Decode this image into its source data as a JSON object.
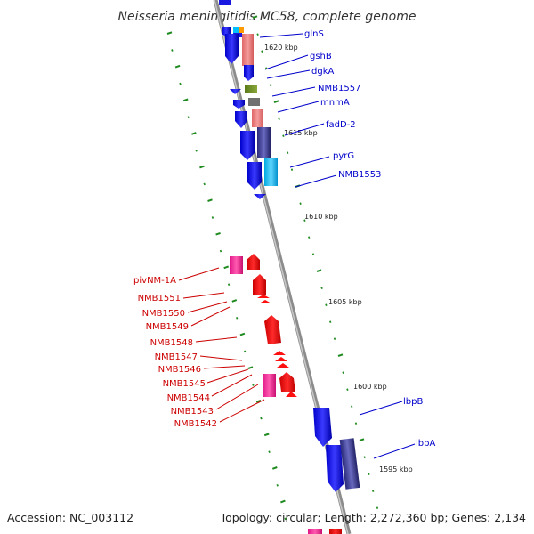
{
  "title": "Neisseria meningitidis MC58, complete genome",
  "footer": {
    "accession": "Accession: NC_003112",
    "topology": "Topology: circular; Length: 2,272,360 bp; Genes: 2,134"
  },
  "colors": {
    "backbone": "#9a9a9a",
    "tick": "#1f8a1f",
    "forward_label": "#0000cc",
    "reverse_label": "#cc0000"
  },
  "scale_labels": [
    {
      "text": "1620 kbp"
    },
    {
      "text": "1615 kbp"
    },
    {
      "text": "1610 kbp"
    },
    {
      "text": "1605 kbp"
    },
    {
      "text": "1600 kbp"
    },
    {
      "text": "1595 kbp"
    }
  ],
  "forward_genes": [
    {
      "label": "glnS"
    },
    {
      "label": "gshB"
    },
    {
      "label": "dgkA"
    },
    {
      "label": "NMB1557"
    },
    {
      "label": "mnmA"
    },
    {
      "label": "fadD-2"
    },
    {
      "label": "pyrG"
    },
    {
      "label": "NMB1553"
    },
    {
      "label": "lbpB"
    },
    {
      "label": "lbpA"
    }
  ],
  "reverse_genes": [
    {
      "label": "pivNM-1A"
    },
    {
      "label": "NMB1551"
    },
    {
      "label": "NMB1550"
    },
    {
      "label": "NMB1549"
    },
    {
      "label": "NMB1548"
    },
    {
      "label": "NMB1547"
    },
    {
      "label": "NMB1546"
    },
    {
      "label": "NMB1545"
    },
    {
      "label": "NMB1544"
    },
    {
      "label": "NMB1543"
    },
    {
      "label": "NMB1542"
    }
  ]
}
